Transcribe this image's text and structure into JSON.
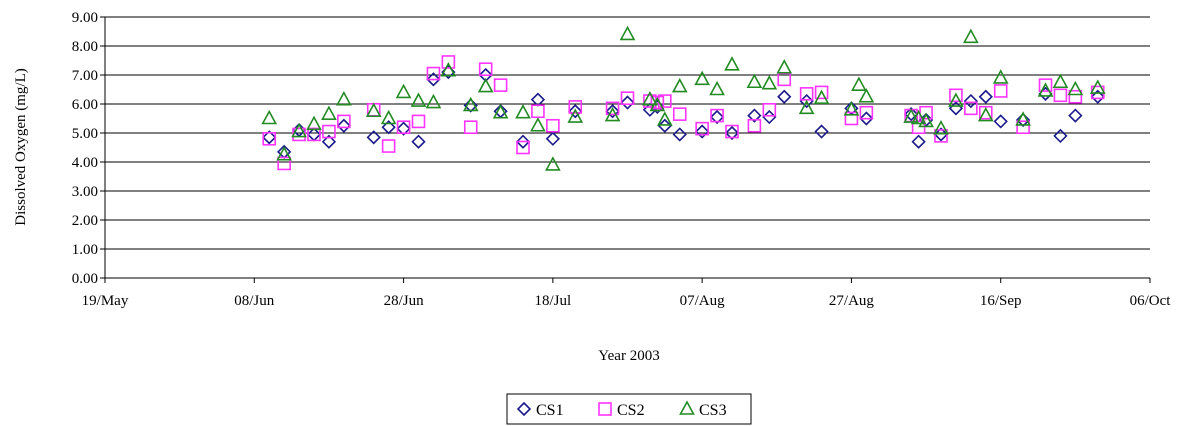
{
  "chart_data": {
    "type": "scatter",
    "title": "",
    "xlabel": "Year 2003",
    "ylabel": "Dissolved Oxygen (mg/L)",
    "xlim": [
      "2003-05-19",
      "2003-10-06"
    ],
    "ylim": [
      0,
      9
    ],
    "x_ticks": [
      {
        "date": "2003-05-19",
        "label": "19/May"
      },
      {
        "date": "2003-06-08",
        "label": "08/Jun"
      },
      {
        "date": "2003-06-28",
        "label": "28/Jun"
      },
      {
        "date": "2003-07-18",
        "label": "18/Jul"
      },
      {
        "date": "2003-08-07",
        "label": "07/Aug"
      },
      {
        "date": "2003-08-27",
        "label": "27/Aug"
      },
      {
        "date": "2003-09-16",
        "label": "16/Sep"
      },
      {
        "date": "2003-10-06",
        "label": "06/Oct"
      }
    ],
    "y_ticks": [
      "0.00",
      "1.00",
      "2.00",
      "3.00",
      "4.00",
      "5.00",
      "6.00",
      "7.00",
      "8.00",
      "9.00"
    ],
    "grid": {
      "horizontal": true,
      "vertical": false
    },
    "legend": {
      "position": "bottom"
    },
    "series": [
      {
        "name": "CS1",
        "marker": "diamond",
        "color": "#1a1a8c",
        "points": [
          [
            "2003-06-10",
            4.85
          ],
          [
            "2003-06-12",
            4.35
          ],
          [
            "2003-06-14",
            5.1
          ],
          [
            "2003-06-16",
            4.95
          ],
          [
            "2003-06-18",
            4.7
          ],
          [
            "2003-06-20",
            5.25
          ],
          [
            "2003-06-24",
            4.85
          ],
          [
            "2003-06-26",
            5.2
          ],
          [
            "2003-06-28",
            5.15
          ],
          [
            "2003-06-30",
            4.7
          ],
          [
            "2003-07-02",
            6.85
          ],
          [
            "2003-07-04",
            7.1
          ],
          [
            "2003-07-07",
            5.95
          ],
          [
            "2003-07-09",
            7.0
          ],
          [
            "2003-07-11",
            5.75
          ],
          [
            "2003-07-14",
            4.7
          ],
          [
            "2003-07-16",
            6.15
          ],
          [
            "2003-07-18",
            4.8
          ],
          [
            "2003-07-21",
            5.75
          ],
          [
            "2003-07-26",
            5.75
          ],
          [
            "2003-07-28",
            6.05
          ],
          [
            "2003-07-31",
            5.8
          ],
          [
            "2003-08-01",
            5.9
          ],
          [
            "2003-08-02",
            5.25
          ],
          [
            "2003-08-04",
            4.95
          ],
          [
            "2003-08-07",
            5.05
          ],
          [
            "2003-08-09",
            5.55
          ],
          [
            "2003-08-11",
            5.0
          ],
          [
            "2003-08-14",
            5.6
          ],
          [
            "2003-08-16",
            5.55
          ],
          [
            "2003-08-18",
            6.25
          ],
          [
            "2003-08-21",
            6.1
          ],
          [
            "2003-08-23",
            5.05
          ],
          [
            "2003-08-27",
            5.85
          ],
          [
            "2003-08-29",
            5.5
          ],
          [
            "2003-09-04",
            5.65
          ],
          [
            "2003-09-05",
            4.7
          ],
          [
            "2003-09-06",
            5.45
          ],
          [
            "2003-09-08",
            4.95
          ],
          [
            "2003-09-10",
            5.85
          ],
          [
            "2003-09-12",
            6.1
          ],
          [
            "2003-09-14",
            6.25
          ],
          [
            "2003-09-16",
            5.4
          ],
          [
            "2003-09-19",
            5.45
          ],
          [
            "2003-09-22",
            6.35
          ],
          [
            "2003-09-24",
            4.9
          ],
          [
            "2003-09-26",
            5.6
          ],
          [
            "2003-09-29",
            6.25
          ]
        ]
      },
      {
        "name": "CS2",
        "marker": "square",
        "color": "#ff33ff",
        "points": [
          [
            "2003-06-10",
            4.8
          ],
          [
            "2003-06-12",
            3.95
          ],
          [
            "2003-06-14",
            4.95
          ],
          [
            "2003-06-16",
            4.95
          ],
          [
            "2003-06-18",
            5.05
          ],
          [
            "2003-06-20",
            5.4
          ],
          [
            "2003-06-24",
            5.8
          ],
          [
            "2003-06-26",
            4.55
          ],
          [
            "2003-06-28",
            5.2
          ],
          [
            "2003-06-30",
            5.4
          ],
          [
            "2003-07-02",
            7.05
          ],
          [
            "2003-07-04",
            7.45
          ],
          [
            "2003-07-07",
            5.2
          ],
          [
            "2003-07-09",
            7.2
          ],
          [
            "2003-07-11",
            6.65
          ],
          [
            "2003-07-14",
            4.5
          ],
          [
            "2003-07-16",
            5.75
          ],
          [
            "2003-07-18",
            5.25
          ],
          [
            "2003-07-21",
            5.9
          ],
          [
            "2003-07-26",
            5.85
          ],
          [
            "2003-07-28",
            6.2
          ],
          [
            "2003-07-31",
            6.1
          ],
          [
            "2003-08-01",
            6.05
          ],
          [
            "2003-08-02",
            6.1
          ],
          [
            "2003-08-04",
            5.65
          ],
          [
            "2003-08-07",
            5.15
          ],
          [
            "2003-08-09",
            5.6
          ],
          [
            "2003-08-11",
            5.05
          ],
          [
            "2003-08-14",
            5.25
          ],
          [
            "2003-08-16",
            5.8
          ],
          [
            "2003-08-18",
            6.85
          ],
          [
            "2003-08-21",
            6.35
          ],
          [
            "2003-08-23",
            6.4
          ],
          [
            "2003-08-27",
            5.5
          ],
          [
            "2003-08-29",
            5.7
          ],
          [
            "2003-09-04",
            5.6
          ],
          [
            "2003-09-05",
            5.2
          ],
          [
            "2003-09-06",
            5.7
          ],
          [
            "2003-09-08",
            4.9
          ],
          [
            "2003-09-10",
            6.3
          ],
          [
            "2003-09-12",
            5.85
          ],
          [
            "2003-09-14",
            5.7
          ],
          [
            "2003-09-16",
            6.45
          ],
          [
            "2003-09-19",
            5.2
          ],
          [
            "2003-09-22",
            6.65
          ],
          [
            "2003-09-24",
            6.3
          ],
          [
            "2003-09-26",
            6.25
          ],
          [
            "2003-09-29",
            6.4
          ]
        ]
      },
      {
        "name": "CS3",
        "marker": "triangle",
        "color": "#228b22",
        "points": [
          [
            "2003-06-10",
            5.5
          ],
          [
            "2003-06-12",
            4.25
          ],
          [
            "2003-06-14",
            5.05
          ],
          [
            "2003-06-16",
            5.3
          ],
          [
            "2003-06-18",
            5.65
          ],
          [
            "2003-06-20",
            6.15
          ],
          [
            "2003-06-24",
            5.75
          ],
          [
            "2003-06-26",
            5.5
          ],
          [
            "2003-06-28",
            6.4
          ],
          [
            "2003-06-30",
            6.1
          ],
          [
            "2003-07-02",
            6.05
          ],
          [
            "2003-07-04",
            7.15
          ],
          [
            "2003-07-07",
            5.95
          ],
          [
            "2003-07-09",
            6.6
          ],
          [
            "2003-07-11",
            5.7
          ],
          [
            "2003-07-14",
            5.7
          ],
          [
            "2003-07-16",
            5.25
          ],
          [
            "2003-07-18",
            3.9
          ],
          [
            "2003-07-21",
            5.55
          ],
          [
            "2003-07-26",
            5.6
          ],
          [
            "2003-07-28",
            8.4
          ],
          [
            "2003-07-31",
            6.15
          ],
          [
            "2003-08-01",
            5.95
          ],
          [
            "2003-08-02",
            5.45
          ],
          [
            "2003-08-04",
            6.6
          ],
          [
            "2003-08-07",
            6.85
          ],
          [
            "2003-08-09",
            6.5
          ],
          [
            "2003-08-11",
            7.35
          ],
          [
            "2003-08-14",
            6.75
          ],
          [
            "2003-08-16",
            6.7
          ],
          [
            "2003-08-18",
            7.25
          ],
          [
            "2003-08-21",
            5.85
          ],
          [
            "2003-08-23",
            6.2
          ],
          [
            "2003-08-27",
            5.8
          ],
          [
            "2003-08-28",
            6.65
          ],
          [
            "2003-08-29",
            6.25
          ],
          [
            "2003-09-04",
            5.55
          ],
          [
            "2003-09-05",
            5.5
          ],
          [
            "2003-09-06",
            5.4
          ],
          [
            "2003-09-08",
            5.15
          ],
          [
            "2003-09-10",
            6.1
          ],
          [
            "2003-09-12",
            8.3
          ],
          [
            "2003-09-14",
            5.6
          ],
          [
            "2003-09-16",
            6.9
          ],
          [
            "2003-09-19",
            5.45
          ],
          [
            "2003-09-22",
            6.45
          ],
          [
            "2003-09-24",
            6.75
          ],
          [
            "2003-09-26",
            6.5
          ],
          [
            "2003-09-29",
            6.55
          ]
        ]
      }
    ]
  }
}
